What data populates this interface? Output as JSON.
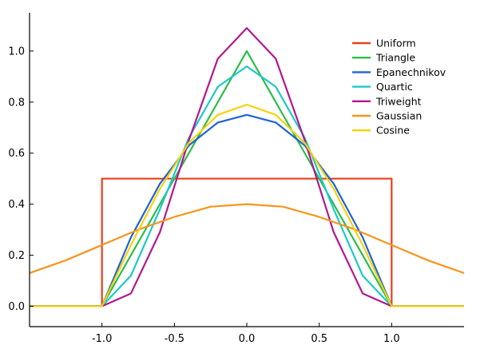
{
  "chart_data": {
    "type": "line",
    "title": "",
    "xlabel": "",
    "ylabel": "",
    "xlim": [
      -1.5,
      1.5
    ],
    "ylim": [
      -0.08,
      1.15
    ],
    "grid": false,
    "legend_position": "top-right",
    "x_ticks": [
      -1.0,
      -0.5,
      0.0,
      0.5,
      1.0
    ],
    "x_tick_labels": [
      "-1.0",
      "-0.5",
      "0.0",
      "0.5",
      "1.0"
    ],
    "y_ticks": [
      0.0,
      0.2,
      0.4,
      0.6,
      0.8,
      1.0
    ],
    "y_tick_labels": [
      "0.0",
      "0.2",
      "0.4",
      "0.6",
      "0.8",
      "1.0"
    ],
    "series": [
      {
        "name": "Uniform",
        "color": "#e8401c",
        "x": [
          -1.5,
          -1.0,
          -1.0,
          1.0,
          1.0,
          1.5
        ],
        "y": [
          0.0,
          0.0,
          0.5,
          0.5,
          0.0,
          0.0
        ]
      },
      {
        "name": "Triangle",
        "color": "#2cbd4a",
        "x": [
          -1.5,
          -1.0,
          0.0,
          1.0,
          1.5
        ],
        "y": [
          0.0,
          0.0,
          1.0,
          0.0,
          0.0
        ]
      },
      {
        "name": "Epanechnikov",
        "color": "#1e63d6",
        "x": [
          -1.5,
          -1.0,
          -0.8,
          -0.6,
          -0.4,
          -0.2,
          0.0,
          0.2,
          0.4,
          0.6,
          0.8,
          1.0,
          1.5
        ],
        "y": [
          0.0,
          0.0,
          0.27,
          0.48,
          0.63,
          0.72,
          0.75,
          0.72,
          0.63,
          0.48,
          0.27,
          0.0,
          0.0
        ]
      },
      {
        "name": "Quartic",
        "color": "#1ec8c8",
        "x": [
          -1.5,
          -1.0,
          -0.8,
          -0.6,
          -0.4,
          -0.2,
          0.0,
          0.2,
          0.4,
          0.6,
          0.8,
          1.0,
          1.5
        ],
        "y": [
          0.0,
          0.0,
          0.12,
          0.38,
          0.66,
          0.86,
          0.94,
          0.86,
          0.66,
          0.38,
          0.12,
          0.0,
          0.0
        ]
      },
      {
        "name": "Triweight",
        "color": "#b2188f",
        "x": [
          -1.5,
          -1.0,
          -0.8,
          -0.6,
          -0.4,
          -0.2,
          0.0,
          0.2,
          0.4,
          0.6,
          0.8,
          1.0,
          1.5
        ],
        "y": [
          0.0,
          0.0,
          0.05,
          0.29,
          0.65,
          0.97,
          1.09,
          0.97,
          0.65,
          0.29,
          0.05,
          0.0,
          0.0
        ]
      },
      {
        "name": "Gaussian",
        "color": "#f7941d",
        "x": [
          -1.5,
          -1.25,
          -1.0,
          -0.75,
          -0.5,
          -0.25,
          0.0,
          0.25,
          0.5,
          0.75,
          1.0,
          1.25,
          1.5
        ],
        "y": [
          0.13,
          0.18,
          0.24,
          0.3,
          0.35,
          0.39,
          0.4,
          0.39,
          0.35,
          0.3,
          0.24,
          0.18,
          0.13
        ]
      },
      {
        "name": "Cosine",
        "color": "#f5d20c",
        "x": [
          -1.5,
          -1.0,
          -0.8,
          -0.6,
          -0.4,
          -0.2,
          0.0,
          0.2,
          0.4,
          0.6,
          0.8,
          1.0,
          1.5
        ],
        "y": [
          0.0,
          0.0,
          0.24,
          0.46,
          0.64,
          0.75,
          0.79,
          0.75,
          0.64,
          0.46,
          0.24,
          0.0,
          0.0
        ]
      }
    ]
  }
}
